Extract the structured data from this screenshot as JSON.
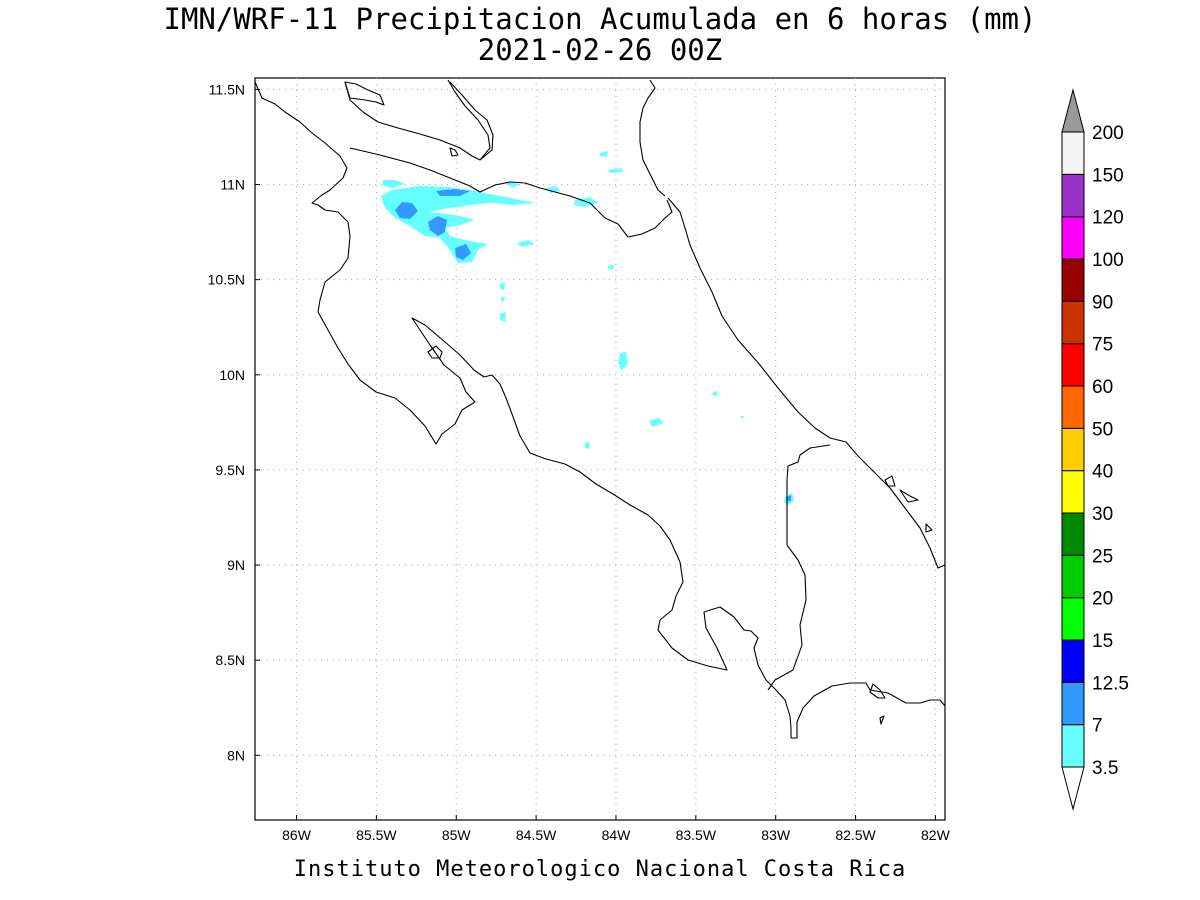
{
  "title": {
    "line1": "IMN/WRF-11 Precipitacion Acumulada en 6 horas (mm)",
    "line2": "2021-02-26 00Z"
  },
  "footer": "Instituto Meteorologico Nacional Costa Rica",
  "map": {
    "lat_ticks": [
      {
        "value": 8.0,
        "label": "8N"
      },
      {
        "value": 8.5,
        "label": "8.5N"
      },
      {
        "value": 9.0,
        "label": "9N"
      },
      {
        "value": 9.5,
        "label": "9.5N"
      },
      {
        "value": 10.0,
        "label": "10N"
      },
      {
        "value": 10.5,
        "label": "10.5N"
      },
      {
        "value": 11.0,
        "label": "11N"
      },
      {
        "value": 11.5,
        "label": "11.5N"
      }
    ],
    "lon_ticks": [
      {
        "value": -86.0,
        "label": "86W"
      },
      {
        "value": -85.5,
        "label": "85.5W"
      },
      {
        "value": -85.0,
        "label": "85W"
      },
      {
        "value": -84.5,
        "label": "84.5W"
      },
      {
        "value": -84.0,
        "label": "84W"
      },
      {
        "value": -83.5,
        "label": "83.5W"
      },
      {
        "value": -83.0,
        "label": "83W"
      },
      {
        "value": -82.5,
        "label": "82.5W"
      },
      {
        "value": -82.0,
        "label": "82W"
      }
    ],
    "lon_range": [
      -86.26,
      -81.94
    ],
    "lat_range": [
      7.66,
      11.56
    ],
    "grid": true,
    "coastline_color": "#000000",
    "precip_areas": [
      {
        "class": "3.5-7",
        "color": "#66ffff",
        "lon": -85.15,
        "lat": 10.85
      },
      {
        "class": "7-12.5",
        "color": "#3399ff",
        "lon": -85.28,
        "lat": 10.86
      },
      {
        "class": "7-12.5",
        "color": "#3399ff",
        "lon": -85.12,
        "lat": 10.8
      },
      {
        "class": "7-12.5",
        "color": "#3399ff",
        "lon": -84.98,
        "lat": 10.64
      },
      {
        "class": "7-12.5",
        "color": "#3399ff",
        "lon": -82.93,
        "lat": 9.31
      }
    ]
  },
  "colorbar": {
    "levels": [
      "3.5",
      "7",
      "12.5",
      "15",
      "20",
      "25",
      "30",
      "40",
      "50",
      "60",
      "75",
      "90",
      "100",
      "120",
      "150",
      "200"
    ],
    "colors": [
      "#66ffff",
      "#3399ff",
      "#0000ff",
      "#00ff00",
      "#00cc00",
      "#008800",
      "#ffff00",
      "#ffcc00",
      "#ff6600",
      "#ff0000",
      "#cc3300",
      "#990000",
      "#ff00ff",
      "#9933cc",
      "#f5f5f5"
    ],
    "low_arrow_color": "#ffffff",
    "high_arrow_color": "#999999"
  }
}
